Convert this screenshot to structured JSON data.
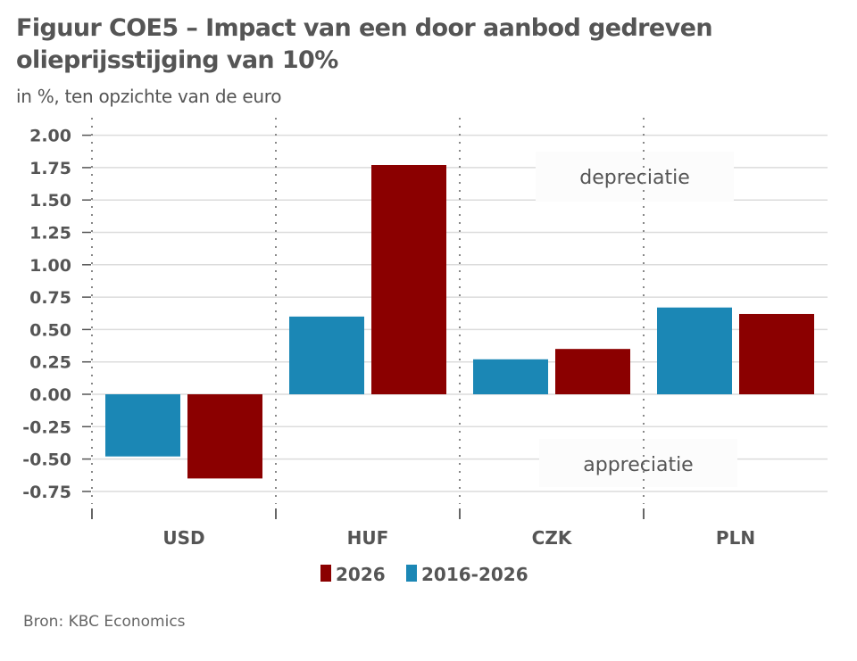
{
  "header": {
    "title_line1": "Figuur COE5 – Impact van een door aanbod gedreven",
    "title_line2": "olieprijsstijging van 10%",
    "subtitle": "in %, ten opzichte van de euro"
  },
  "footer": {
    "source": "Bron: KBC Economics"
  },
  "chart_data": {
    "type": "bar",
    "title": "Figuur COE5 – Impact van een door aanbod gedreven olieprijsstijging van 10%",
    "subtitle": "in %, ten opzichte van de euro",
    "xlabel": "",
    "ylabel": "",
    "categories": [
      "USD",
      "HUF",
      "CZK",
      "PLN"
    ],
    "series": [
      {
        "name": "2016-2026",
        "color": "#1b87b5",
        "values": [
          -0.48,
          0.6,
          0.27,
          0.67
        ]
      },
      {
        "name": "2026",
        "color": "#8b0000",
        "values": [
          -0.65,
          1.77,
          0.35,
          0.62
        ]
      }
    ],
    "ylim": [
      -0.85,
      2.0
    ],
    "yticks": [
      "2.00",
      "1.75",
      "1.50",
      "1.25",
      "1.00",
      "0.75",
      "0.50",
      "0.25",
      "0.00",
      "-0.25",
      "-0.50",
      "-0.75"
    ],
    "ytick_values": [
      2.0,
      1.75,
      1.5,
      1.25,
      1.0,
      0.75,
      0.5,
      0.25,
      0.0,
      -0.25,
      -0.5,
      -0.75
    ],
    "grid": true,
    "legend": {
      "position": "bottom",
      "entries": [
        "2026",
        "2016-2026"
      ]
    },
    "annotations": [
      "depreciatie",
      "appreciatie"
    ]
  }
}
